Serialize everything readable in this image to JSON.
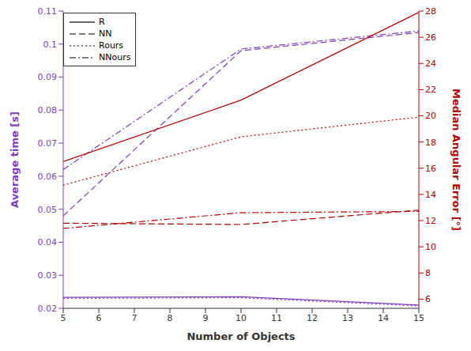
{
  "chart_data": {
    "type": "line",
    "xlabel": "Number of Objects",
    "ylabel": "Average time [s]",
    "y2label": "Median Angular Error [°]",
    "x": [
      5,
      10,
      15
    ],
    "xlim": [
      5,
      15
    ],
    "xticks": [
      5,
      6,
      7,
      8,
      9,
      10,
      11,
      12,
      13,
      14,
      15
    ],
    "ylim": [
      0.02,
      0.11
    ],
    "yticks": [
      0.02,
      0.03,
      0.04,
      0.05,
      0.06,
      0.07,
      0.08,
      0.09,
      0.1,
      0.11
    ],
    "y2lim": [
      5.3,
      28
    ],
    "y2ticks": [
      6,
      8,
      10,
      12,
      14,
      16,
      18,
      20,
      22,
      24,
      26,
      28
    ],
    "legend": "upper left",
    "series": [
      {
        "name": "R",
        "color": "#7b3fbf",
        "line_style": "solid",
        "values": [
          0.0233,
          0.0235,
          0.021
        ]
      },
      {
        "name": "NN",
        "color": "#7b3fbf",
        "line_style": "dashed",
        "values": [
          0.048,
          0.098,
          0.1035
        ]
      },
      {
        "name": "Rours",
        "color": "#7b3fbf",
        "line_style": "dotted",
        "values": [
          0.023,
          0.0232,
          0.0207
        ]
      },
      {
        "name": "NNours",
        "color": "#7b3fbf",
        "line_style": "dashdot",
        "values": [
          0.062,
          0.0985,
          0.104
        ]
      },
      {
        "name": "R",
        "color": "#b30000",
        "line_style": "solid",
        "axis": "y2",
        "values": [
          16.5,
          21.2,
          27.9
        ]
      },
      {
        "name": "NN",
        "color": "#b30000",
        "line_style": "dashed",
        "axis": "y2",
        "values": [
          11.8,
          11.7,
          12.8
        ]
      },
      {
        "name": "Rours",
        "color": "#b30000",
        "line_style": "dotted",
        "axis": "y2",
        "values": [
          14.7,
          18.4,
          19.9
        ]
      },
      {
        "name": "NNours",
        "color": "#b30000",
        "line_style": "dashdot",
        "axis": "y2",
        "values": [
          11.4,
          12.6,
          12.7
        ]
      }
    ]
  }
}
